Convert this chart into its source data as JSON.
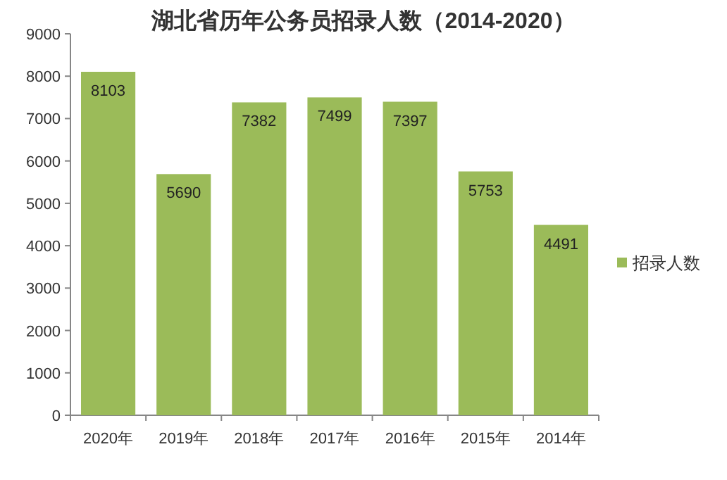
{
  "chart_data": {
    "type": "bar",
    "title": "湖北省历年公务员招录人数（2014-2020）",
    "categories": [
      "2020年",
      "2019年",
      "2018年",
      "2017年",
      "2016年",
      "2015年",
      "2014年"
    ],
    "series": [
      {
        "name": "招录人数",
        "color": "#9bbb59",
        "values": [
          8103,
          5690,
          7382,
          7499,
          7397,
          5753,
          4491
        ]
      }
    ],
    "ylim": [
      0,
      9000
    ],
    "yticks": [
      0,
      1000,
      2000,
      3000,
      4000,
      5000,
      6000,
      7000,
      8000,
      9000
    ],
    "data_labels": true,
    "legend": "right",
    "grid": false
  }
}
